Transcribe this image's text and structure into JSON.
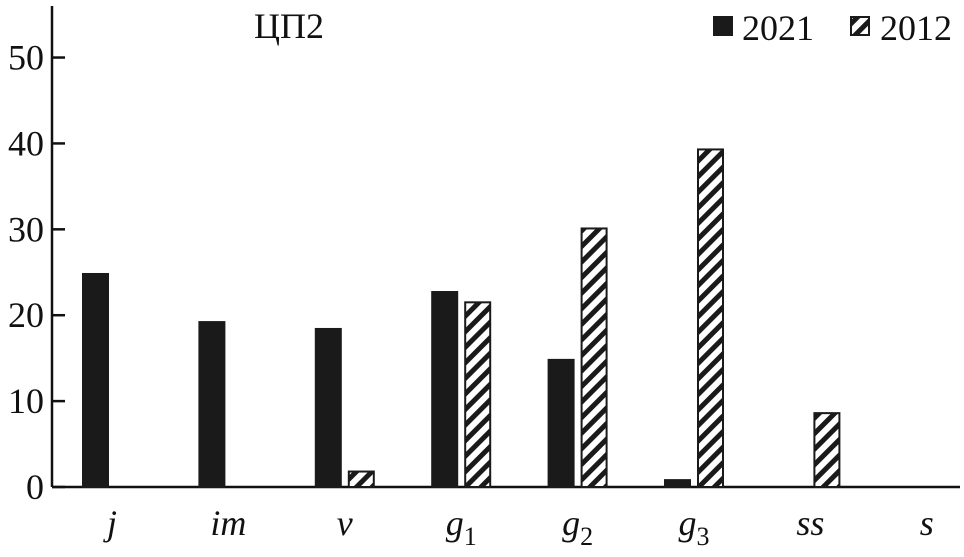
{
  "chart_data": {
    "type": "bar",
    "title": "ЦП2",
    "xlabel": "",
    "ylabel": "",
    "ylim": [
      0,
      56
    ],
    "yticks": [
      0,
      10,
      20,
      30,
      40,
      50
    ],
    "legend_position": "top-right",
    "grid": false,
    "categories": [
      {
        "base": "j",
        "sub": ""
      },
      {
        "base": "im",
        "sub": ""
      },
      {
        "base": "v",
        "sub": ""
      },
      {
        "base": "g",
        "sub": "1"
      },
      {
        "base": "g",
        "sub": "2"
      },
      {
        "base": "g",
        "sub": "3"
      },
      {
        "base": "ss",
        "sub": ""
      },
      {
        "base": "s",
        "sub": ""
      }
    ],
    "series": [
      {
        "name": "2021",
        "fill": "solid",
        "color": "#1a1a1a",
        "values": [
          24.8,
          19.2,
          18.4,
          22.7,
          14.8,
          0.8,
          0,
          0
        ]
      },
      {
        "name": "2012",
        "fill": "hatched",
        "color": "#1a1a1a",
        "values": [
          0,
          0,
          1.8,
          21.5,
          30.1,
          39.3,
          8.6,
          0
        ]
      }
    ]
  }
}
